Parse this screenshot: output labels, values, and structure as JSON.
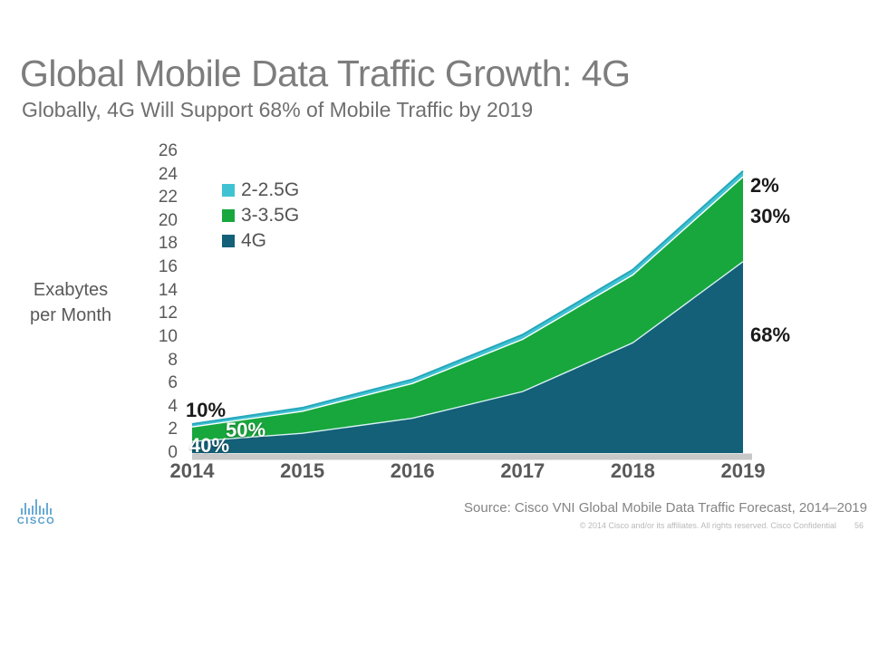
{
  "slide": {
    "title": "Global Mobile Data Traffic Growth: 4G",
    "subtitle": "Globally, 4G Will Support 68% of Mobile Traffic by 2019",
    "source": "Source: Cisco VNI Global Mobile Data Traffic Forecast, 2014–2019",
    "copyright": "© 2014  Cisco and/or its affiliates. All rights reserved.   Cisco Confidential",
    "page_number": "56",
    "logo_text": "CISCO"
  },
  "chart_data": {
    "type": "area",
    "stacked": true,
    "title": "",
    "xlabel": "",
    "ylabel": "Exabytes per Month",
    "ylabel_lines": [
      "Exabytes",
      "per Month"
    ],
    "categories": [
      "2014",
      "2015",
      "2016",
      "2017",
      "2018",
      "2019"
    ],
    "series": [
      {
        "name": "2-2.5G",
        "color": "#3fc3d3",
        "values": [
          0.25,
          0.3,
          0.35,
          0.4,
          0.45,
          0.5
        ]
      },
      {
        "name": "3-3.5G",
        "color": "#18a73c",
        "values": [
          1.25,
          1.9,
          3.0,
          4.5,
          5.85,
          7.3
        ]
      },
      {
        "name": "4G",
        "color": "#136078",
        "values": [
          1.0,
          1.7,
          3.0,
          5.3,
          9.5,
          16.5
        ]
      }
    ],
    "totals": [
      2.5,
      3.9,
      6.35,
      10.2,
      15.8,
      24.3
    ],
    "ylim": [
      0,
      26
    ],
    "ytick_step": 2,
    "grid": false,
    "legend_position": "top-left",
    "annotations": [
      {
        "label": "10%",
        "year": "2014",
        "series": "2-2.5G",
        "color": "#1a1a1a"
      },
      {
        "label": "50%",
        "year": "2014",
        "series": "3-3.5G",
        "color": "#ffffff"
      },
      {
        "label": "40%",
        "year": "2014",
        "series": "4G",
        "color": "#ffffff"
      },
      {
        "label": "2%",
        "year": "2019",
        "series": "2-2.5G",
        "color": "#1a1a1a"
      },
      {
        "label": "30%",
        "year": "2019",
        "series": "3-3.5G",
        "color": "#1a1a1a"
      },
      {
        "label": "68%",
        "year": "2019",
        "series": "4G",
        "color": "#1a1a1a"
      }
    ],
    "accent_colors": {
      "band_divider_light": "#d9f1f5",
      "band_divider_white": "#ffffff",
      "top_edge": "#27a6bb",
      "baseline_strip": "#c8c8c8"
    }
  }
}
